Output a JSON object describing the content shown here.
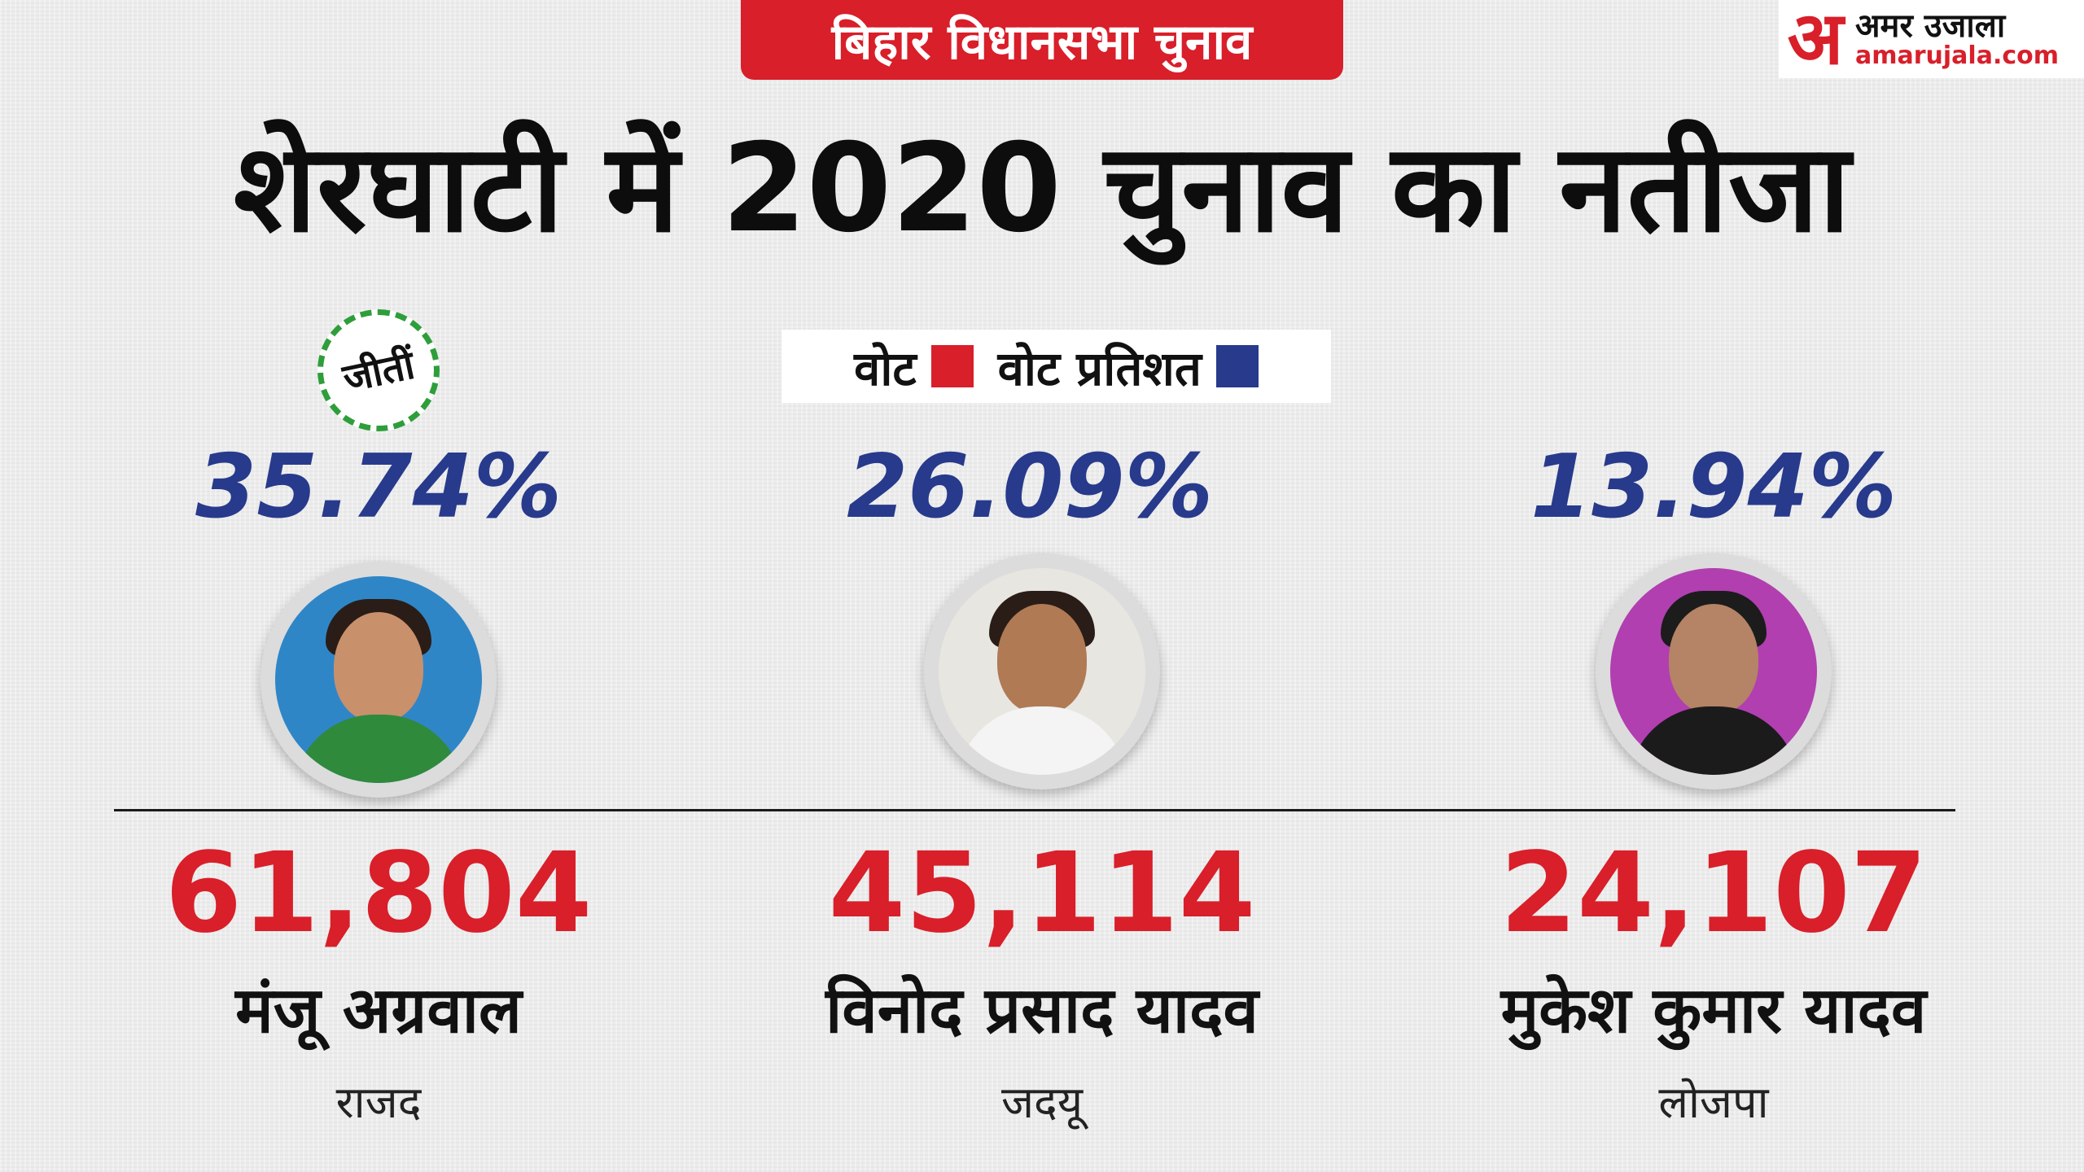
{
  "header": {
    "tag": "बिहार विधानसभा चुनाव",
    "title": "शेरघाटी में  2020 चुनाव का नतीजा",
    "logo": {
      "mark": "अ",
      "name_hi": "अमर उजाला",
      "name_en": "amarujala.com"
    }
  },
  "legend": [
    {
      "label": "वोट",
      "color": "#d81f2a"
    },
    {
      "label": "वोट प्रतिशत",
      "color": "#273a8c"
    }
  ],
  "winner_label": "जीतीं",
  "candidates": [
    {
      "name": "मंजू अग्रवाल",
      "party": "राजद",
      "votes": "61,804",
      "vote_percent": "35.74%",
      "winner": true
    },
    {
      "name": "विनोद प्रसाद यादव",
      "party": "जदयू",
      "votes": "45,114",
      "vote_percent": "26.09%",
      "winner": false
    },
    {
      "name": "मुकेश कुमार यादव",
      "party": "लोजपा",
      "votes": "24,107",
      "vote_percent": "13.94%",
      "winner": false
    }
  ],
  "colors": {
    "accent_red": "#d81f2a",
    "accent_blue": "#273a8c",
    "winner_green": "#2e9e3b"
  }
}
